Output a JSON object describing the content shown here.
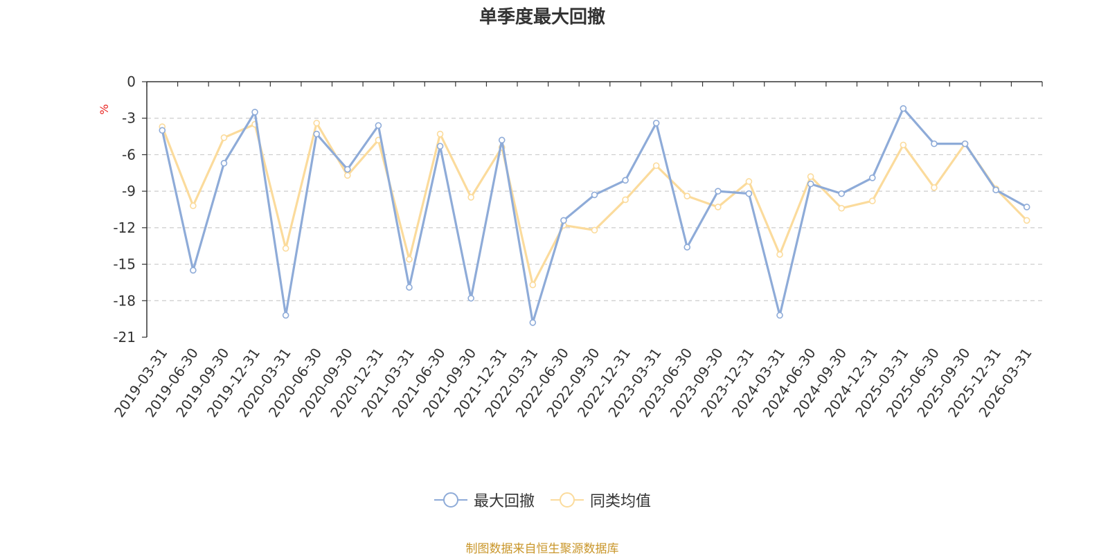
{
  "colors": {
    "max_drawdown": "#8eabd8",
    "peer_average": "#fbdb9c",
    "axis": "#333333",
    "grid": "#cccccc",
    "unit": "#e8221f",
    "source": "#c9962a"
  },
  "chart_data": {
    "type": "line",
    "title": "单季度最大回撤",
    "ylabel": "%",
    "xlabel": "",
    "ylim": [
      -21,
      0
    ],
    "yticks": [
      0,
      -3,
      -6,
      -9,
      -12,
      -15,
      -18,
      -21
    ],
    "grid": true,
    "legend_position": "bottom",
    "categories": [
      "2019-03-31",
      "2019-06-30",
      "2019-09-30",
      "2019-12-31",
      "2020-03-31",
      "2020-06-30",
      "2020-09-30",
      "2020-12-31",
      "2021-03-31",
      "2021-06-30",
      "2021-09-30",
      "2021-12-31",
      "2022-03-31",
      "2022-06-30",
      "2022-09-30",
      "2022-12-31",
      "2023-03-31",
      "2023-06-30",
      "2023-09-30",
      "2023-12-31",
      "2024-03-31",
      "2024-06-30",
      "2024-09-30",
      "2024-12-31",
      "2025-03-31",
      "2025-06-30",
      "2025-09-30",
      "2025-12-31",
      "2026-03-31"
    ],
    "series": [
      {
        "name": "最大回撤",
        "color": "#8eabd8",
        "values": [
          -4.0,
          -15.5,
          -6.7,
          -2.5,
          -19.2,
          -4.3,
          -7.2,
          -3.6,
          -16.9,
          -5.3,
          -17.8,
          -4.8,
          -19.8,
          -11.4,
          -9.3,
          -8.1,
          -3.4,
          -13.6,
          -9.0,
          -9.2,
          -19.2,
          -8.4,
          -9.2,
          -7.9,
          -2.2,
          -5.1,
          -5.1,
          -8.9,
          -10.3
        ]
      },
      {
        "name": "同类均值",
        "color": "#fbdb9c",
        "values": [
          -3.7,
          -10.2,
          -4.6,
          -3.5,
          -13.7,
          -3.4,
          -7.7,
          -4.8,
          -14.6,
          -4.3,
          -9.5,
          -5.4,
          -16.7,
          -11.8,
          -12.2,
          -9.7,
          -6.9,
          -9.4,
          -10.3,
          -8.2,
          -14.2,
          -7.8,
          -10.4,
          -9.8,
          -5.2,
          -8.7,
          -5.1,
          -8.8,
          -11.4
        ]
      }
    ]
  },
  "legend": {
    "items": [
      "最大回撤",
      "同类均值"
    ]
  },
  "footer": {
    "source": "制图数据来自恒生聚源数据库"
  }
}
